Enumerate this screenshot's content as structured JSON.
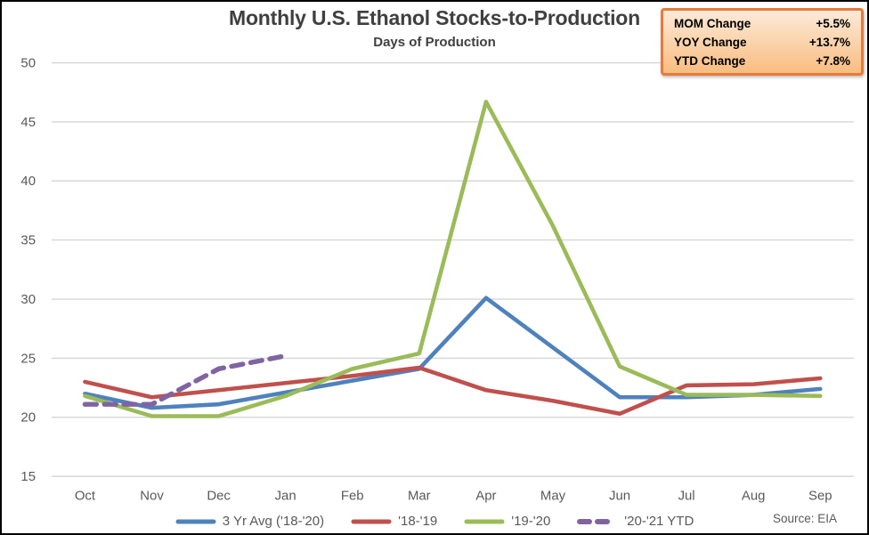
{
  "title": "Monthly U.S. Ethanol Stocks-to-Production",
  "subtitle": "Days of Production",
  "source": "Source: EIA",
  "stats_box": {
    "rows": [
      {
        "label": "MOM Change",
        "value": "+5.5%"
      },
      {
        "label": "YOY Change",
        "value": "+13.7%"
      },
      {
        "label": "YTD Change",
        "value": "+7.8%"
      }
    ],
    "border_color": "#e8793a",
    "fill_top": "#fcead9",
    "fill_bottom": "#f9bd80"
  },
  "chart_data": {
    "type": "line",
    "title": "Monthly U.S. Ethanol Stocks-to-Production",
    "subtitle": "Days of Production",
    "xlabel": "",
    "ylabel": "Days of Production",
    "categories": [
      "Oct",
      "Nov",
      "Dec",
      "Jan",
      "Feb",
      "Mar",
      "Apr",
      "May",
      "Jun",
      "Jul",
      "Aug",
      "Sep"
    ],
    "ylim": [
      15,
      50
    ],
    "yticks": [
      50,
      45,
      40,
      35,
      30,
      25,
      20,
      15
    ],
    "grid": "horizontal",
    "legend_position": "bottom",
    "axis_color": "#595959",
    "gridline_color": "#d6d6d6",
    "series": [
      {
        "name": "3 Yr Avg ('18-'20)",
        "color": "#4f81bd",
        "dashed": false,
        "values": [
          22.0,
          20.8,
          21.1,
          22.1,
          23.1,
          24.1,
          30.1,
          25.9,
          21.7,
          21.7,
          21.9,
          22.4
        ]
      },
      {
        "name": "'18-'19",
        "color": "#c0504d",
        "dashed": false,
        "values": [
          23.0,
          21.7,
          22.3,
          22.9,
          23.5,
          24.2,
          22.3,
          21.4,
          20.3,
          22.7,
          22.8,
          23.3
        ]
      },
      {
        "name": "'19-'20",
        "color": "#9bbb59",
        "dashed": false,
        "values": [
          21.8,
          20.1,
          20.1,
          21.8,
          24.1,
          25.4,
          46.7,
          36.2,
          24.3,
          21.9,
          21.9,
          21.8
        ]
      },
      {
        "name": "'20-'21 YTD",
        "color": "#8064a2",
        "dashed": true,
        "values": [
          21.1,
          21.1,
          24.1,
          25.2,
          null,
          null,
          null,
          null,
          null,
          null,
          null,
          null
        ]
      }
    ]
  }
}
